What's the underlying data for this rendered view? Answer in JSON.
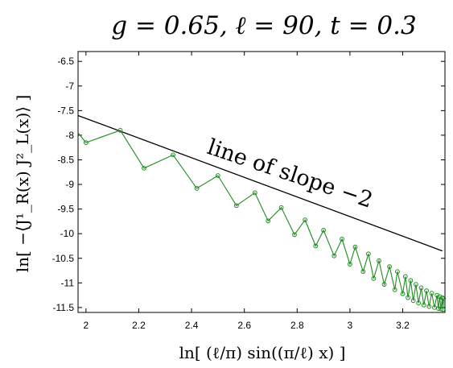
{
  "chart_data": {
    "type": "line",
    "title": "g = 0.65, ℓ = 90, t = 0.3",
    "xlabel": "ln[ (ℓ/π) sin((π/ℓ) x) ]",
    "ylabel": "ln[ −⟨J¹_R(x) J²_L(x)⟩ ]",
    "xlim": [
      1.97,
      3.36
    ],
    "ylim": [
      -11.6,
      -6.3
    ],
    "xticks": [
      "2",
      "2.2",
      "2.4",
      "2.6",
      "2.8",
      "3",
      "3.2"
    ],
    "yticks": [
      "-6.5",
      "-7",
      "-7.5",
      "-8",
      "-8.5",
      "-9",
      "-9.5",
      "-10",
      "-10.5",
      "-11",
      "-11.5"
    ],
    "grid": false,
    "series": [
      {
        "color": "#1e8c1e",
        "marker": "circle",
        "x": [
          1.97,
          2.0,
          2.13,
          2.22,
          2.33,
          2.42,
          2.5,
          2.57,
          2.64,
          2.69,
          2.74,
          2.79,
          2.83,
          2.87,
          2.9,
          2.94,
          2.97,
          3.0,
          3.02,
          3.05,
          3.07,
          3.09,
          3.11,
          3.13,
          3.15,
          3.17,
          3.18,
          3.2,
          3.21,
          3.22,
          3.23,
          3.24,
          3.25,
          3.26,
          3.27,
          3.28,
          3.29,
          3.3,
          3.31,
          3.32,
          3.33,
          3.335,
          3.34,
          3.345,
          3.35,
          3.352,
          3.355
        ],
        "y": [
          -7.95,
          -8.15,
          -7.9,
          -8.67,
          -8.4,
          -9.08,
          -8.82,
          -9.43,
          -9.17,
          -9.74,
          -9.47,
          -10.02,
          -9.72,
          -10.25,
          -9.93,
          -10.45,
          -10.11,
          -10.62,
          -10.27,
          -10.77,
          -10.41,
          -10.91,
          -10.55,
          -11.03,
          -10.67,
          -11.14,
          -10.77,
          -11.22,
          -10.87,
          -11.3,
          -10.95,
          -11.36,
          -11.03,
          -11.41,
          -11.1,
          -11.45,
          -11.16,
          -11.48,
          -11.21,
          -11.5,
          -11.25,
          -11.52,
          -11.28,
          -11.53,
          -11.3,
          -11.54,
          -11.32
        ]
      }
    ],
    "reference_line": {
      "label": "line of slope −2",
      "color": "#000000",
      "slope": -2,
      "x": [
        1.97,
        3.35
      ],
      "y": [
        -7.6,
        -10.35
      ]
    }
  }
}
